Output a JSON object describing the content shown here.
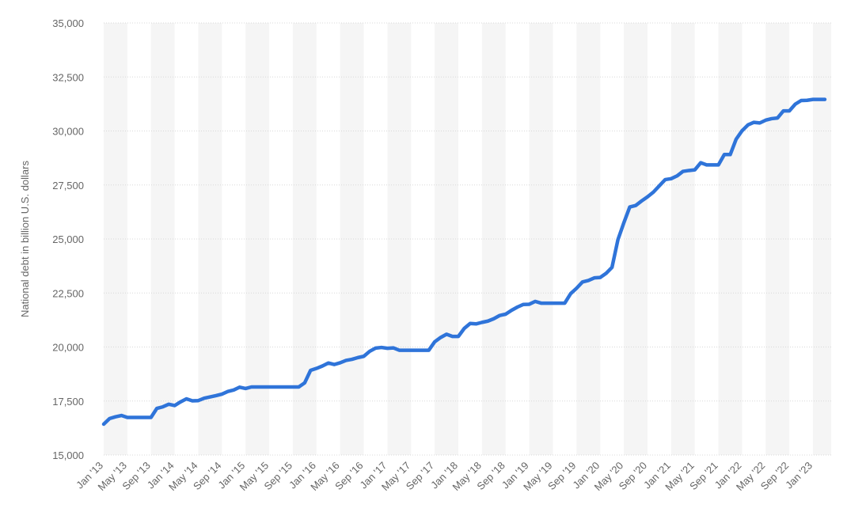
{
  "chart_data": {
    "type": "line",
    "y_label": "National debt in billion U.S. dollars",
    "categories": [
      "Jan '13",
      null,
      null,
      null,
      "May '13",
      null,
      null,
      null,
      "Sep '13",
      null,
      null,
      null,
      "Jan '14",
      null,
      null,
      null,
      "May '14",
      null,
      null,
      null,
      "Sep '14",
      null,
      null,
      null,
      "Jan '15",
      null,
      null,
      null,
      "May '15",
      null,
      null,
      null,
      "Sep '15",
      null,
      null,
      null,
      "Jan '16",
      null,
      null,
      null,
      "May '16",
      null,
      null,
      null,
      "Sep '16",
      null,
      null,
      null,
      "Jan '17",
      null,
      null,
      null,
      "May '17",
      null,
      null,
      null,
      "Sep '17",
      null,
      null,
      null,
      "Jan '18",
      null,
      null,
      null,
      "May '18",
      null,
      null,
      null,
      "Sep '18",
      null,
      null,
      null,
      "Jan '19",
      null,
      null,
      null,
      "May '19",
      null,
      null,
      null,
      "Sep '19",
      null,
      null,
      null,
      "Jan '20",
      null,
      null,
      null,
      "May '20",
      null,
      null,
      null,
      "Sep '20",
      null,
      null,
      null,
      "Jan '21",
      null,
      null,
      null,
      "May '21",
      null,
      null,
      null,
      "Sep '21",
      null,
      null,
      null,
      "Jan '22",
      null,
      null,
      null,
      "May '22",
      null,
      null,
      null,
      "Sep '22",
      null,
      null,
      null,
      "Jan '23",
      null,
      null
    ],
    "values": [
      16430,
      16690,
      16770,
      16830,
      16740,
      16740,
      16740,
      16740,
      16740,
      17160,
      17230,
      17350,
      17290,
      17460,
      17600,
      17510,
      17520,
      17630,
      17690,
      17750,
      17820,
      17940,
      18010,
      18140,
      18080,
      18150,
      18150,
      18150,
      18150,
      18150,
      18150,
      18150,
      18150,
      18150,
      18340,
      18920,
      19010,
      19120,
      19260,
      19190,
      19270,
      19380,
      19430,
      19510,
      19570,
      19800,
      19950,
      19980,
      19940,
      19960,
      19850,
      19850,
      19850,
      19850,
      19850,
      19850,
      20240,
      20440,
      20590,
      20490,
      20490,
      20860,
      21090,
      21070,
      21140,
      21200,
      21310,
      21460,
      21520,
      21700,
      21850,
      21970,
      21980,
      22110,
      22030,
      22030,
      22030,
      22030,
      22030,
      22470,
      22720,
      23010,
      23080,
      23200,
      23220,
      23410,
      23690,
      24970,
      25750,
      26480,
      26550,
      26760,
      26950,
      27170,
      27460,
      27750,
      27790,
      27920,
      28130,
      28170,
      28200,
      28530,
      28430,
      28430,
      28430,
      28910,
      28910,
      29620,
      30010,
      30280,
      30400,
      30370,
      30500,
      30570,
      30600,
      30930,
      30930,
      31240,
      31410,
      31420,
      31460,
      31460,
      31460
    ],
    "color": "#2f74d9",
    "ylim": [
      15000,
      35000
    ],
    "yticks": [
      {
        "value": 15000,
        "label": "15,000"
      },
      {
        "value": 17500,
        "label": "17,500"
      },
      {
        "value": 20000,
        "label": "20,000"
      },
      {
        "value": 22500,
        "label": "22,500"
      },
      {
        "value": 25000,
        "label": "25,000"
      },
      {
        "value": 27500,
        "label": "27,500"
      },
      {
        "value": 30000,
        "label": "30,000"
      },
      {
        "value": 32500,
        "label": "32,500"
      },
      {
        "value": 35000,
        "label": "35,000"
      }
    ],
    "grid": true
  }
}
